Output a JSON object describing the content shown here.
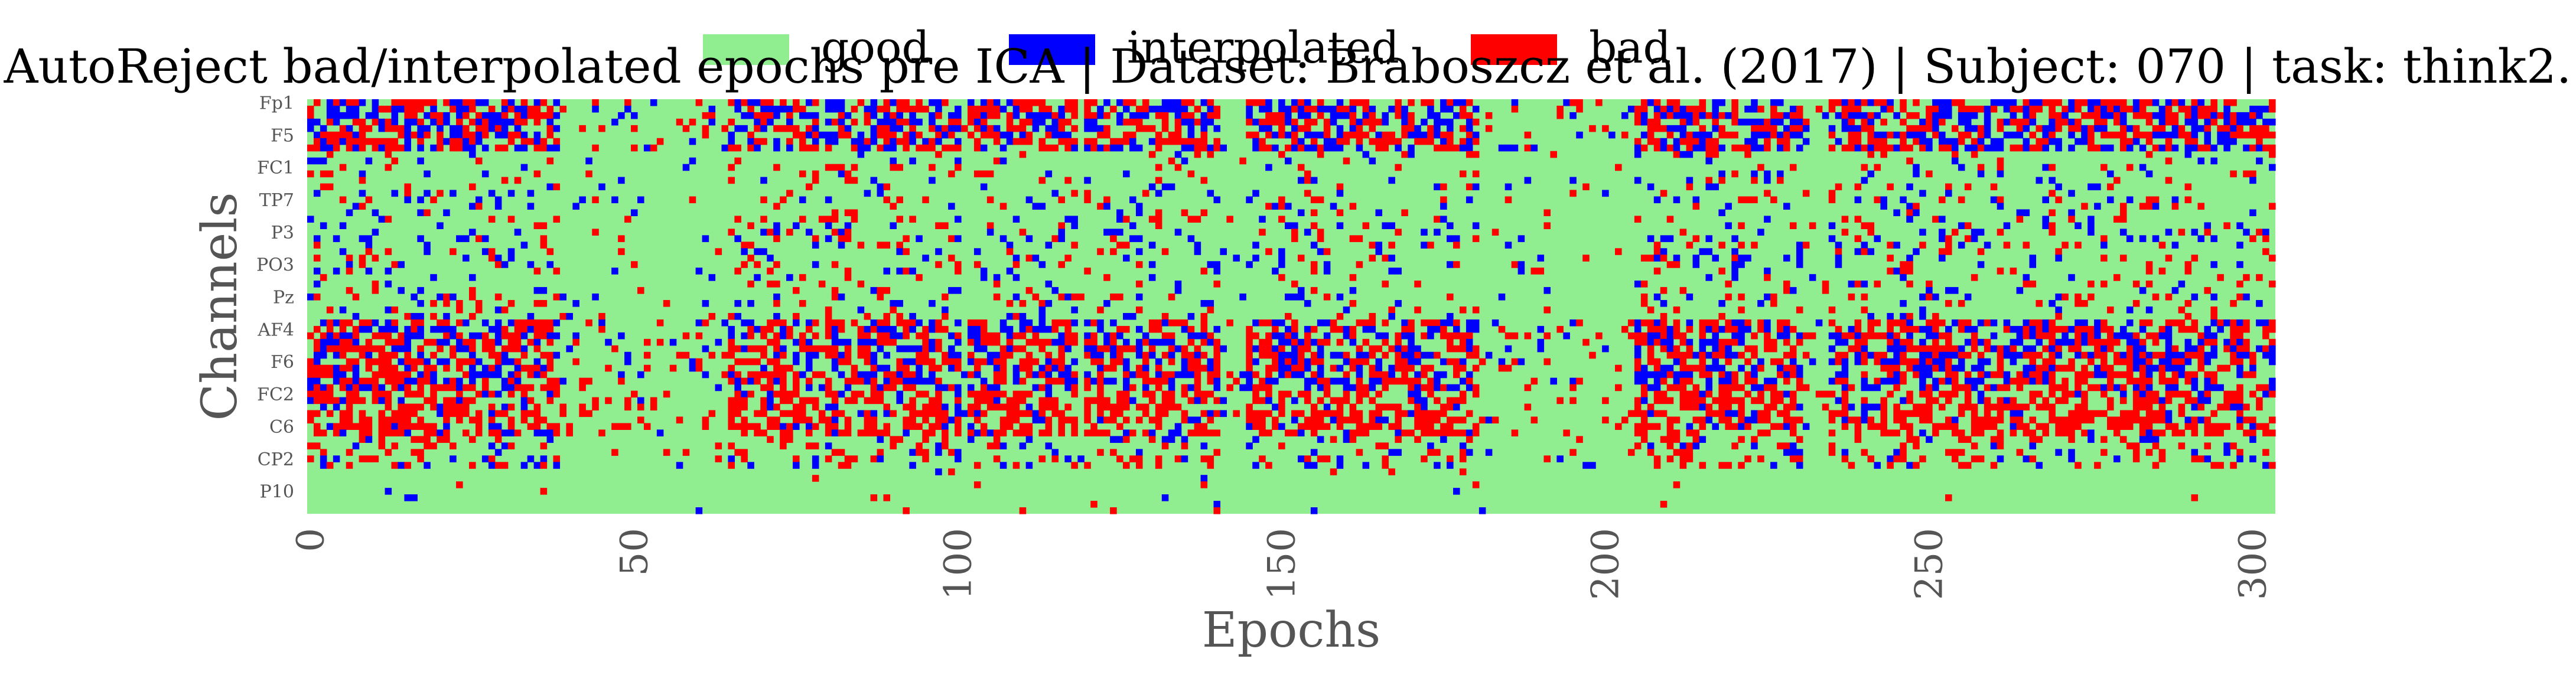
{
  "figure": {
    "title": "AutoReject bad/interpolated epochs pre ICA | Dataset: Braboszcz et al. (2017) | Subject: 070 | task: think2."
  },
  "chart_data": {
    "type": "heatmap",
    "title": "AutoReject bad/interpolated epochs pre ICA | Dataset: Braboszcz et al. (2017) | Subject: 070 | task: think2.",
    "xlabel": "Epochs",
    "ylabel": "Channels",
    "x_ticks": [
      0,
      50,
      100,
      150,
      200,
      250,
      300
    ],
    "y_tick_labels": [
      "Fp1",
      "F5",
      "FC1",
      "TP7",
      "P3",
      "PO3",
      "Pz",
      "AF4",
      "F6",
      "FC2",
      "C6",
      "CP2",
      "P10"
    ],
    "n_epochs": 304,
    "n_channels": 64,
    "legend": {
      "placement": "top-center",
      "entries": [
        {
          "label": "good",
          "color": "#90ee90"
        },
        {
          "label": "interpolated",
          "color": "#0000ff"
        },
        {
          "label": "bad",
          "color": "#ff0000"
        }
      ]
    },
    "colors": {
      "good": "#90ee90",
      "interpolated": "#0000ff",
      "bad": "#ff0000"
    },
    "high_activity_epochs": [
      [
        0,
        38
      ],
      [
        65,
        78
      ],
      [
        80,
        100
      ],
      [
        102,
        118
      ],
      [
        120,
        140
      ],
      [
        145,
        180
      ],
      [
        205,
        230
      ],
      [
        235,
        305
      ]
    ],
    "band_activity": [
      {
        "channels": [
          0,
          8
        ],
        "bad": 0.22,
        "interpolated": 0.2
      },
      {
        "channels": [
          8,
          15
        ],
        "bad": 0.04,
        "interpolated": 0.03
      },
      {
        "channels": [
          15,
          24
        ],
        "bad": 0.06,
        "interpolated": 0.05
      },
      {
        "channels": [
          24,
          34
        ],
        "bad": 0.05,
        "interpolated": 0.05
      },
      {
        "channels": [
          34,
          45
        ],
        "bad": 0.24,
        "interpolated": 0.16
      },
      {
        "channels": [
          45,
          52
        ],
        "bad": 0.3,
        "interpolated": 0.06
      },
      {
        "channels": [
          52,
          57
        ],
        "bad": 0.1,
        "interpolated": 0.06
      },
      {
        "channels": [
          57,
          64
        ],
        "bad": 0.008,
        "interpolated": 0.004
      }
    ]
  }
}
